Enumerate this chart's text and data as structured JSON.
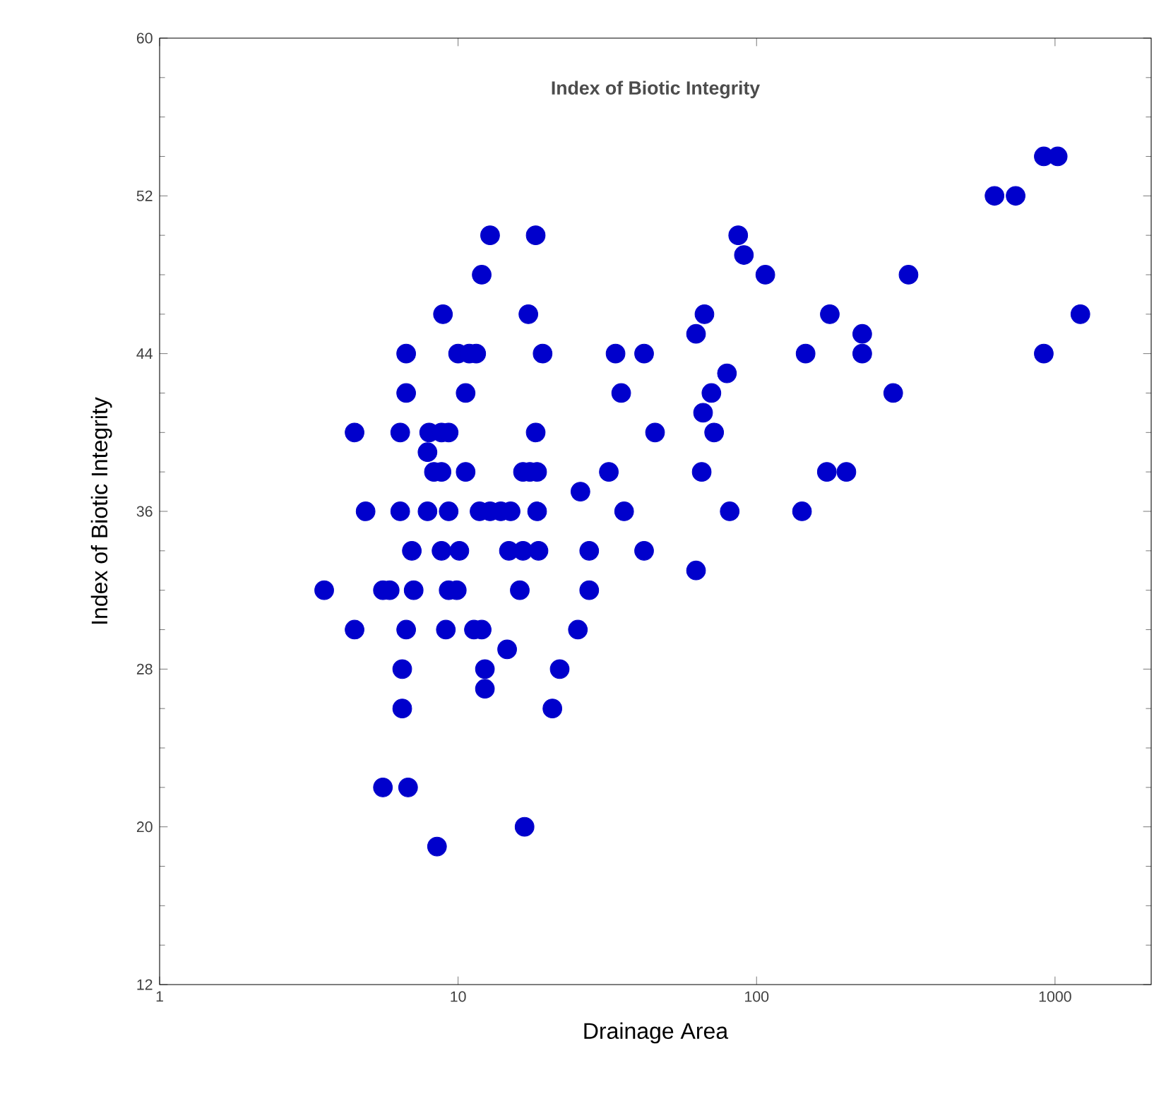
{
  "chart_data": {
    "type": "scatter",
    "title": "Index of Biotic Integrity",
    "xlabel": "Drainage Area",
    "ylabel": "Index of Biotic Integrity",
    "log": "x",
    "xlim": [
      1,
      2100
    ],
    "ylim": [
      12,
      60
    ],
    "xticks": [
      1,
      10,
      100,
      1000
    ],
    "yticks": [
      12,
      20,
      28,
      36,
      44,
      52,
      60
    ],
    "grid": false,
    "series": [
      {
        "color": "#0000cc",
        "x": [
          12.8,
          18.2,
          86.8,
          90.7,
          12,
          107,
          323,
          8.9,
          17.2,
          66.9,
          176,
          1216,
          62.7,
          226,
          6.7,
          10,
          10.9,
          11.5,
          19.2,
          33.7,
          42,
          146,
          226,
          917,
          79.6,
          6.7,
          10.6,
          35.2,
          70.6,
          287,
          66.2,
          4.5,
          6.4,
          8,
          8.8,
          9.3,
          18.2,
          45.7,
          72.1,
          7.9,
          8.3,
          8.8,
          10.6,
          16.5,
          17.4,
          18.4,
          32,
          65.5,
          172,
          200,
          25.7,
          4.9,
          6.4,
          7.9,
          9.3,
          11.8,
          12.8,
          13.9,
          15,
          18.4,
          36,
          81.3,
          142,
          7,
          8.8,
          10.1,
          14.8,
          16.5,
          18.6,
          27.5,
          42,
          62.7,
          3.56,
          5.6,
          5.9,
          7.1,
          9.3,
          9.9,
          16.1,
          27.5,
          4.5,
          6.7,
          9.1,
          11.3,
          12,
          25.2,
          14.6,
          6.5,
          12.3,
          21.9,
          12.3,
          6.5,
          20.7,
          5.6,
          6.8,
          16.7,
          8.5,
          627,
          738,
          917,
          1021
        ],
        "values": [
          50,
          50,
          50,
          49,
          48,
          48,
          48,
          46,
          46,
          46,
          46,
          46,
          45,
          45,
          44,
          44,
          44,
          44,
          44,
          44,
          44,
          44,
          44,
          44,
          43,
          42,
          42,
          42,
          42,
          42,
          41,
          40,
          40,
          40,
          40,
          40,
          40,
          40,
          40,
          39,
          38,
          38,
          38,
          38,
          38,
          38,
          38,
          38,
          38,
          38,
          37,
          36,
          36,
          36,
          36,
          36,
          36,
          36,
          36,
          36,
          36,
          36,
          36,
          34,
          34,
          34,
          34,
          34,
          34,
          34,
          34,
          33,
          32,
          32,
          32,
          32,
          32,
          32,
          32,
          32,
          30,
          30,
          30,
          30,
          30,
          30,
          29,
          28,
          28,
          28,
          27,
          26,
          26,
          22,
          22,
          20,
          19,
          52,
          52,
          54,
          54
        ]
      }
    ]
  }
}
